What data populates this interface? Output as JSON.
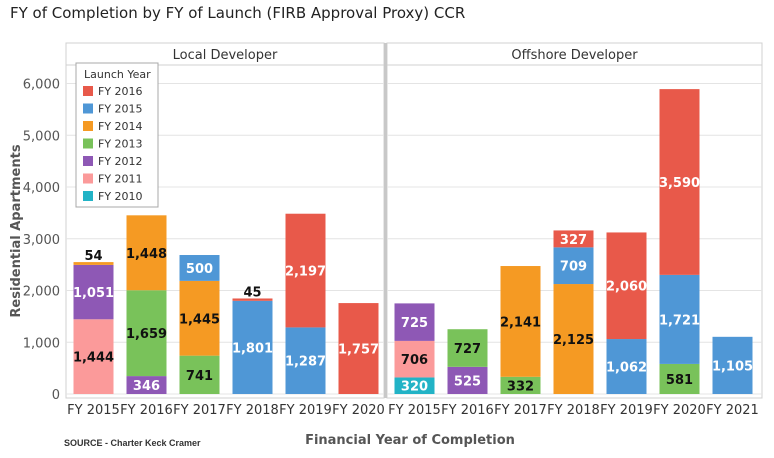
{
  "title": "FY of Completion by FY of Launch (FIRB Approval Proxy) CCR",
  "source": "SOURCE - Charter Keck Cramer",
  "chart_data": {
    "type": "bar",
    "stacked": true,
    "title": "FY of Completion by FY of Launch (FIRB Approval Proxy) CCR",
    "xlabel": "Financial Year of Completion",
    "ylabel": "Residential Apartments",
    "ylim": [
      0,
      6300
    ],
    "yticks": [
      0,
      1000,
      2000,
      3000,
      4000,
      5000,
      6000
    ],
    "ytick_labels": [
      "0",
      "1,000",
      "2,000",
      "3,000",
      "4,000",
      "5,000",
      "6,000"
    ],
    "grid": true,
    "legend": {
      "title": "Launch Year",
      "placement": "top-left",
      "entries": [
        {
          "name": "FY 2016",
          "color": "#e8594a"
        },
        {
          "name": "FY 2015",
          "color": "#4f97d6"
        },
        {
          "name": "FY 2014",
          "color": "#f59a23"
        },
        {
          "name": "FY 2013",
          "color": "#79c25a"
        },
        {
          "name": "FY 2012",
          "color": "#8e58b5"
        },
        {
          "name": "FY 2011",
          "color": "#fb9a9a"
        },
        {
          "name": "FY 2010",
          "color": "#22b3c6"
        }
      ]
    },
    "stack_order": [
      "FY 2010",
      "FY 2011",
      "FY 2012",
      "FY 2013",
      "FY 2014",
      "FY 2015",
      "FY 2016"
    ],
    "panels": [
      {
        "name": "Local Developer",
        "categories": [
          "FY 2015",
          "FY 2016",
          "FY 2017",
          "FY 2018",
          "FY 2019",
          "FY 2020"
        ],
        "series": [
          {
            "name": "FY 2010",
            "values": [
              0,
              0,
              0,
              0,
              0,
              0
            ]
          },
          {
            "name": "FY 2011",
            "values": [
              1444,
              0,
              0,
              0,
              0,
              0
            ]
          },
          {
            "name": "FY 2012",
            "values": [
              1051,
              346,
              0,
              0,
              0,
              0
            ]
          },
          {
            "name": "FY 2013",
            "values": [
              0,
              1659,
              741,
              0,
              0,
              0
            ]
          },
          {
            "name": "FY 2014",
            "values": [
              54,
              1448,
              1445,
              0,
              0,
              0
            ]
          },
          {
            "name": "FY 2015",
            "values": [
              0,
              0,
              500,
              1801,
              1287,
              0
            ]
          },
          {
            "name": "FY 2016",
            "values": [
              0,
              0,
              0,
              45,
              2197,
              1757
            ]
          }
        ]
      },
      {
        "name": "Offshore Developer",
        "categories": [
          "FY 2015",
          "FY 2016",
          "FY 2017",
          "FY 2018",
          "FY 2019",
          "FY 2020",
          "FY 2021"
        ],
        "series": [
          {
            "name": "FY 2010",
            "values": [
              320,
              0,
              0,
              0,
              0,
              0,
              0
            ]
          },
          {
            "name": "FY 2011",
            "values": [
              706,
              0,
              0,
              0,
              0,
              0,
              0
            ]
          },
          {
            "name": "FY 2012",
            "values": [
              725,
              525,
              0,
              0,
              0,
              0,
              0
            ]
          },
          {
            "name": "FY 2013",
            "values": [
              0,
              727,
              332,
              0,
              0,
              581,
              0
            ]
          },
          {
            "name": "FY 2014",
            "values": [
              0,
              0,
              2141,
              2125,
              0,
              0,
              0
            ]
          },
          {
            "name": "FY 2015",
            "values": [
              0,
              0,
              0,
              709,
              1062,
              1721,
              1105
            ]
          },
          {
            "name": "FY 2016",
            "values": [
              0,
              0,
              0,
              327,
              2060,
              3590,
              0
            ]
          }
        ]
      }
    ]
  }
}
